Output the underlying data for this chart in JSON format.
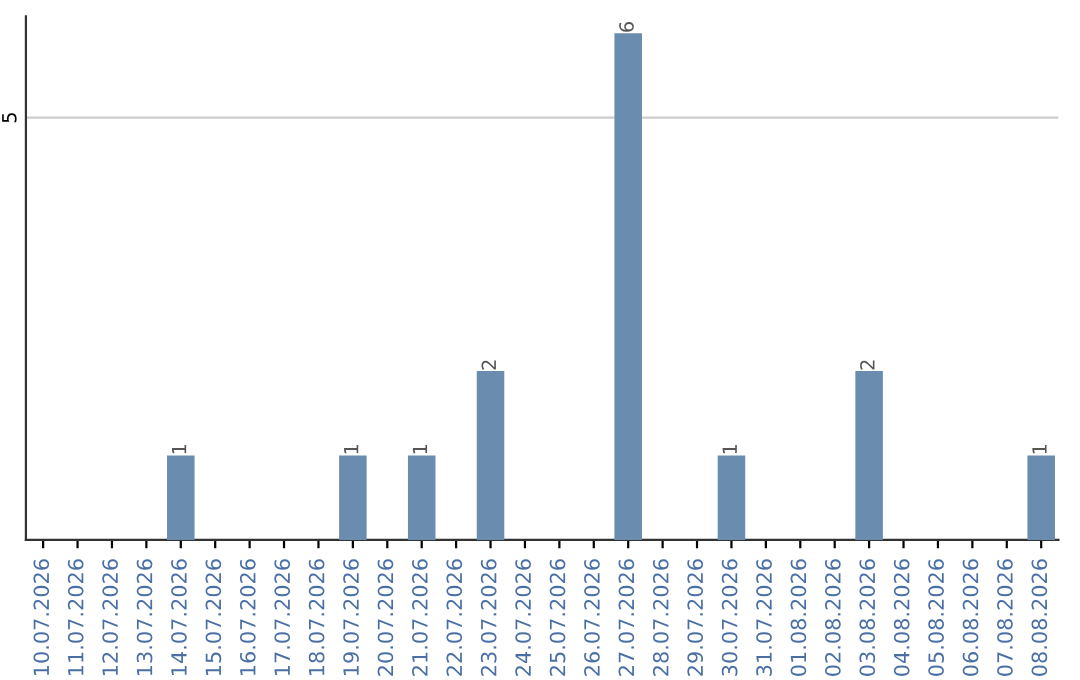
{
  "chart_data": {
    "type": "bar",
    "categories": [
      "10.07.2026",
      "11.07.2026",
      "12.07.2026",
      "13.07.2026",
      "14.07.2026",
      "15.07.2026",
      "16.07.2026",
      "17.07.2026",
      "18.07.2026",
      "19.07.2026",
      "20.07.2026",
      "21.07.2026",
      "22.07.2026",
      "23.07.2026",
      "24.07.2026",
      "25.07.2026",
      "26.07.2026",
      "27.07.2026",
      "28.07.2026",
      "29.07.2026",
      "30.07.2026",
      "31.07.2026",
      "01.08.2026",
      "02.08.2026",
      "03.08.2026",
      "04.08.2026",
      "05.08.2026",
      "06.08.2026",
      "07.08.2026",
      "08.08.2026"
    ],
    "values": [
      0,
      0,
      0,
      0,
      1,
      0,
      0,
      0,
      0,
      1,
      0,
      1,
      0,
      2,
      0,
      0,
      0,
      6,
      0,
      0,
      1,
      0,
      0,
      0,
      2,
      0,
      0,
      0,
      0,
      1
    ],
    "value_labels": [
      null,
      null,
      null,
      null,
      "1",
      null,
      null,
      null,
      null,
      "1",
      null,
      "1",
      null,
      "2",
      null,
      null,
      null,
      "6",
      null,
      null,
      "1",
      null,
      null,
      null,
      "2",
      null,
      null,
      null,
      null,
      "1"
    ],
    "color": "#6a8caf",
    "ylim": [
      0,
      6.2
    ],
    "yticks": [
      5
    ],
    "grid": "y"
  }
}
